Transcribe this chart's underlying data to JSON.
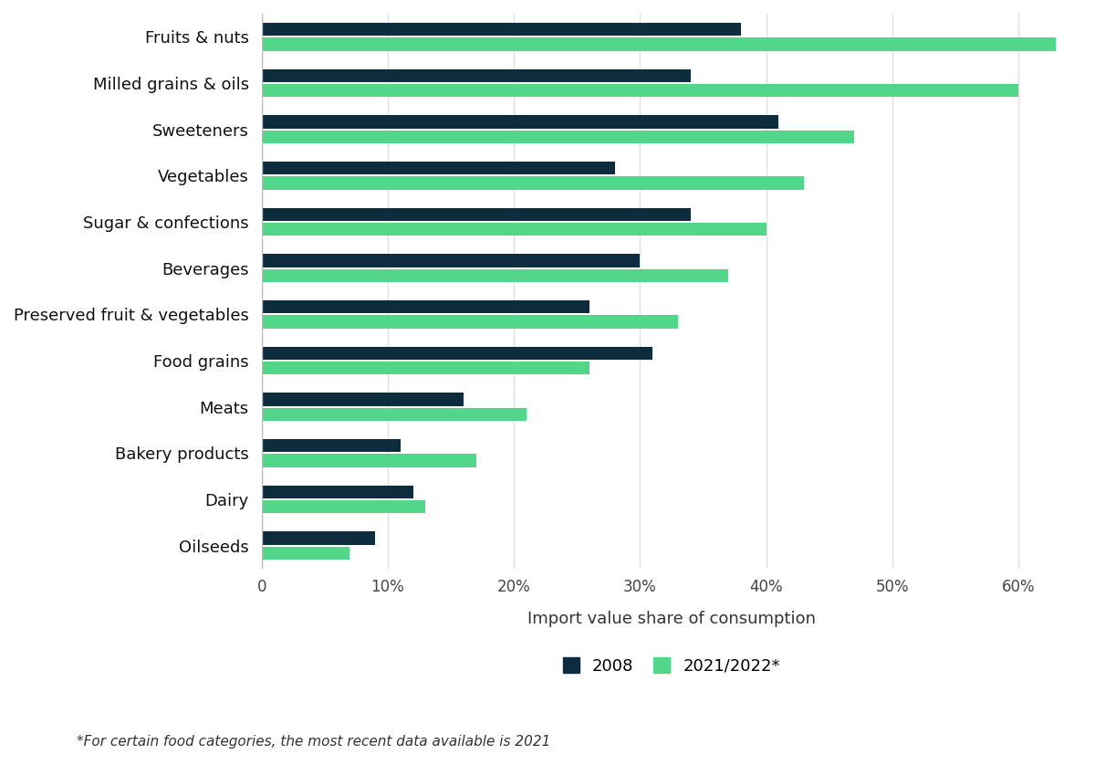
{
  "categories": [
    "Fruits & nuts",
    "Milled grains & oils",
    "Sweeteners",
    "Vegetables",
    "Sugar & confections",
    "Beverages",
    "Preserved fruit & vegetables",
    "Food grains",
    "Meats",
    "Bakery products",
    "Dairy",
    "Oilseeds"
  ],
  "values_2008": [
    38,
    34,
    41,
    28,
    34,
    30,
    26,
    31,
    16,
    11,
    12,
    9
  ],
  "values_2022": [
    63,
    60,
    47,
    43,
    40,
    37,
    33,
    26,
    21,
    17,
    13,
    7
  ],
  "color_2008": "#0d2d3f",
  "color_2022": "#52d68a",
  "background_color": "#ffffff",
  "xlabel": "Import value share of consumption",
  "legend_2008": "2008",
  "legend_2022": "2021/2022*",
  "footnote": "*For certain food categories, the most recent data available is 2021",
  "xlim": [
    0,
    65
  ],
  "xticks": [
    0,
    10,
    20,
    30,
    40,
    50,
    60
  ],
  "xticklabels": [
    "0",
    "10%",
    "20%",
    "30%",
    "40%",
    "50%",
    "60%"
  ]
}
